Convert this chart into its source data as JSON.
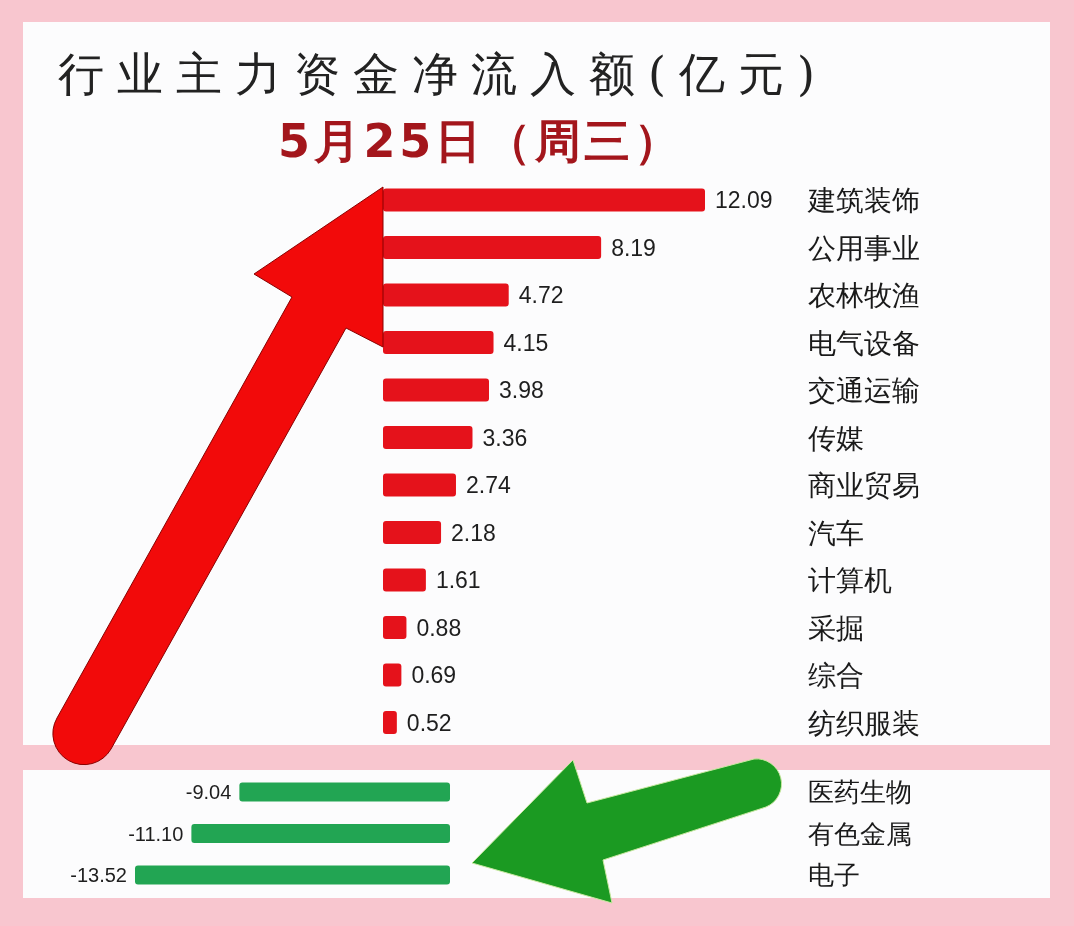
{
  "chart_data": [
    {
      "type": "bar",
      "orientation": "horizontal",
      "title": "行业主力资金净流入额(亿元)",
      "subtitle": "5月25日（周三）",
      "categories": [
        "建筑装饰",
        "公用事业",
        "农林牧渔",
        "电气设备",
        "交通运输",
        "传媒",
        "商业贸易",
        "汽车",
        "计算机",
        "采掘",
        "综合",
        "纺织服装"
      ],
      "values": [
        12.09,
        8.19,
        4.72,
        4.15,
        3.98,
        3.36,
        2.74,
        2.18,
        1.61,
        0.88,
        0.69,
        0.52
      ],
      "color": "#e5121b",
      "data_labels": true
    },
    {
      "type": "bar",
      "orientation": "horizontal",
      "categories": [
        "医药生物",
        "有色金属",
        "电子"
      ],
      "values": [
        -9.04,
        -11.1,
        -13.52
      ],
      "color": "#22a553",
      "value_labels": [
        "-9.04",
        "-11.10",
        "-13.52"
      ]
    }
  ]
}
